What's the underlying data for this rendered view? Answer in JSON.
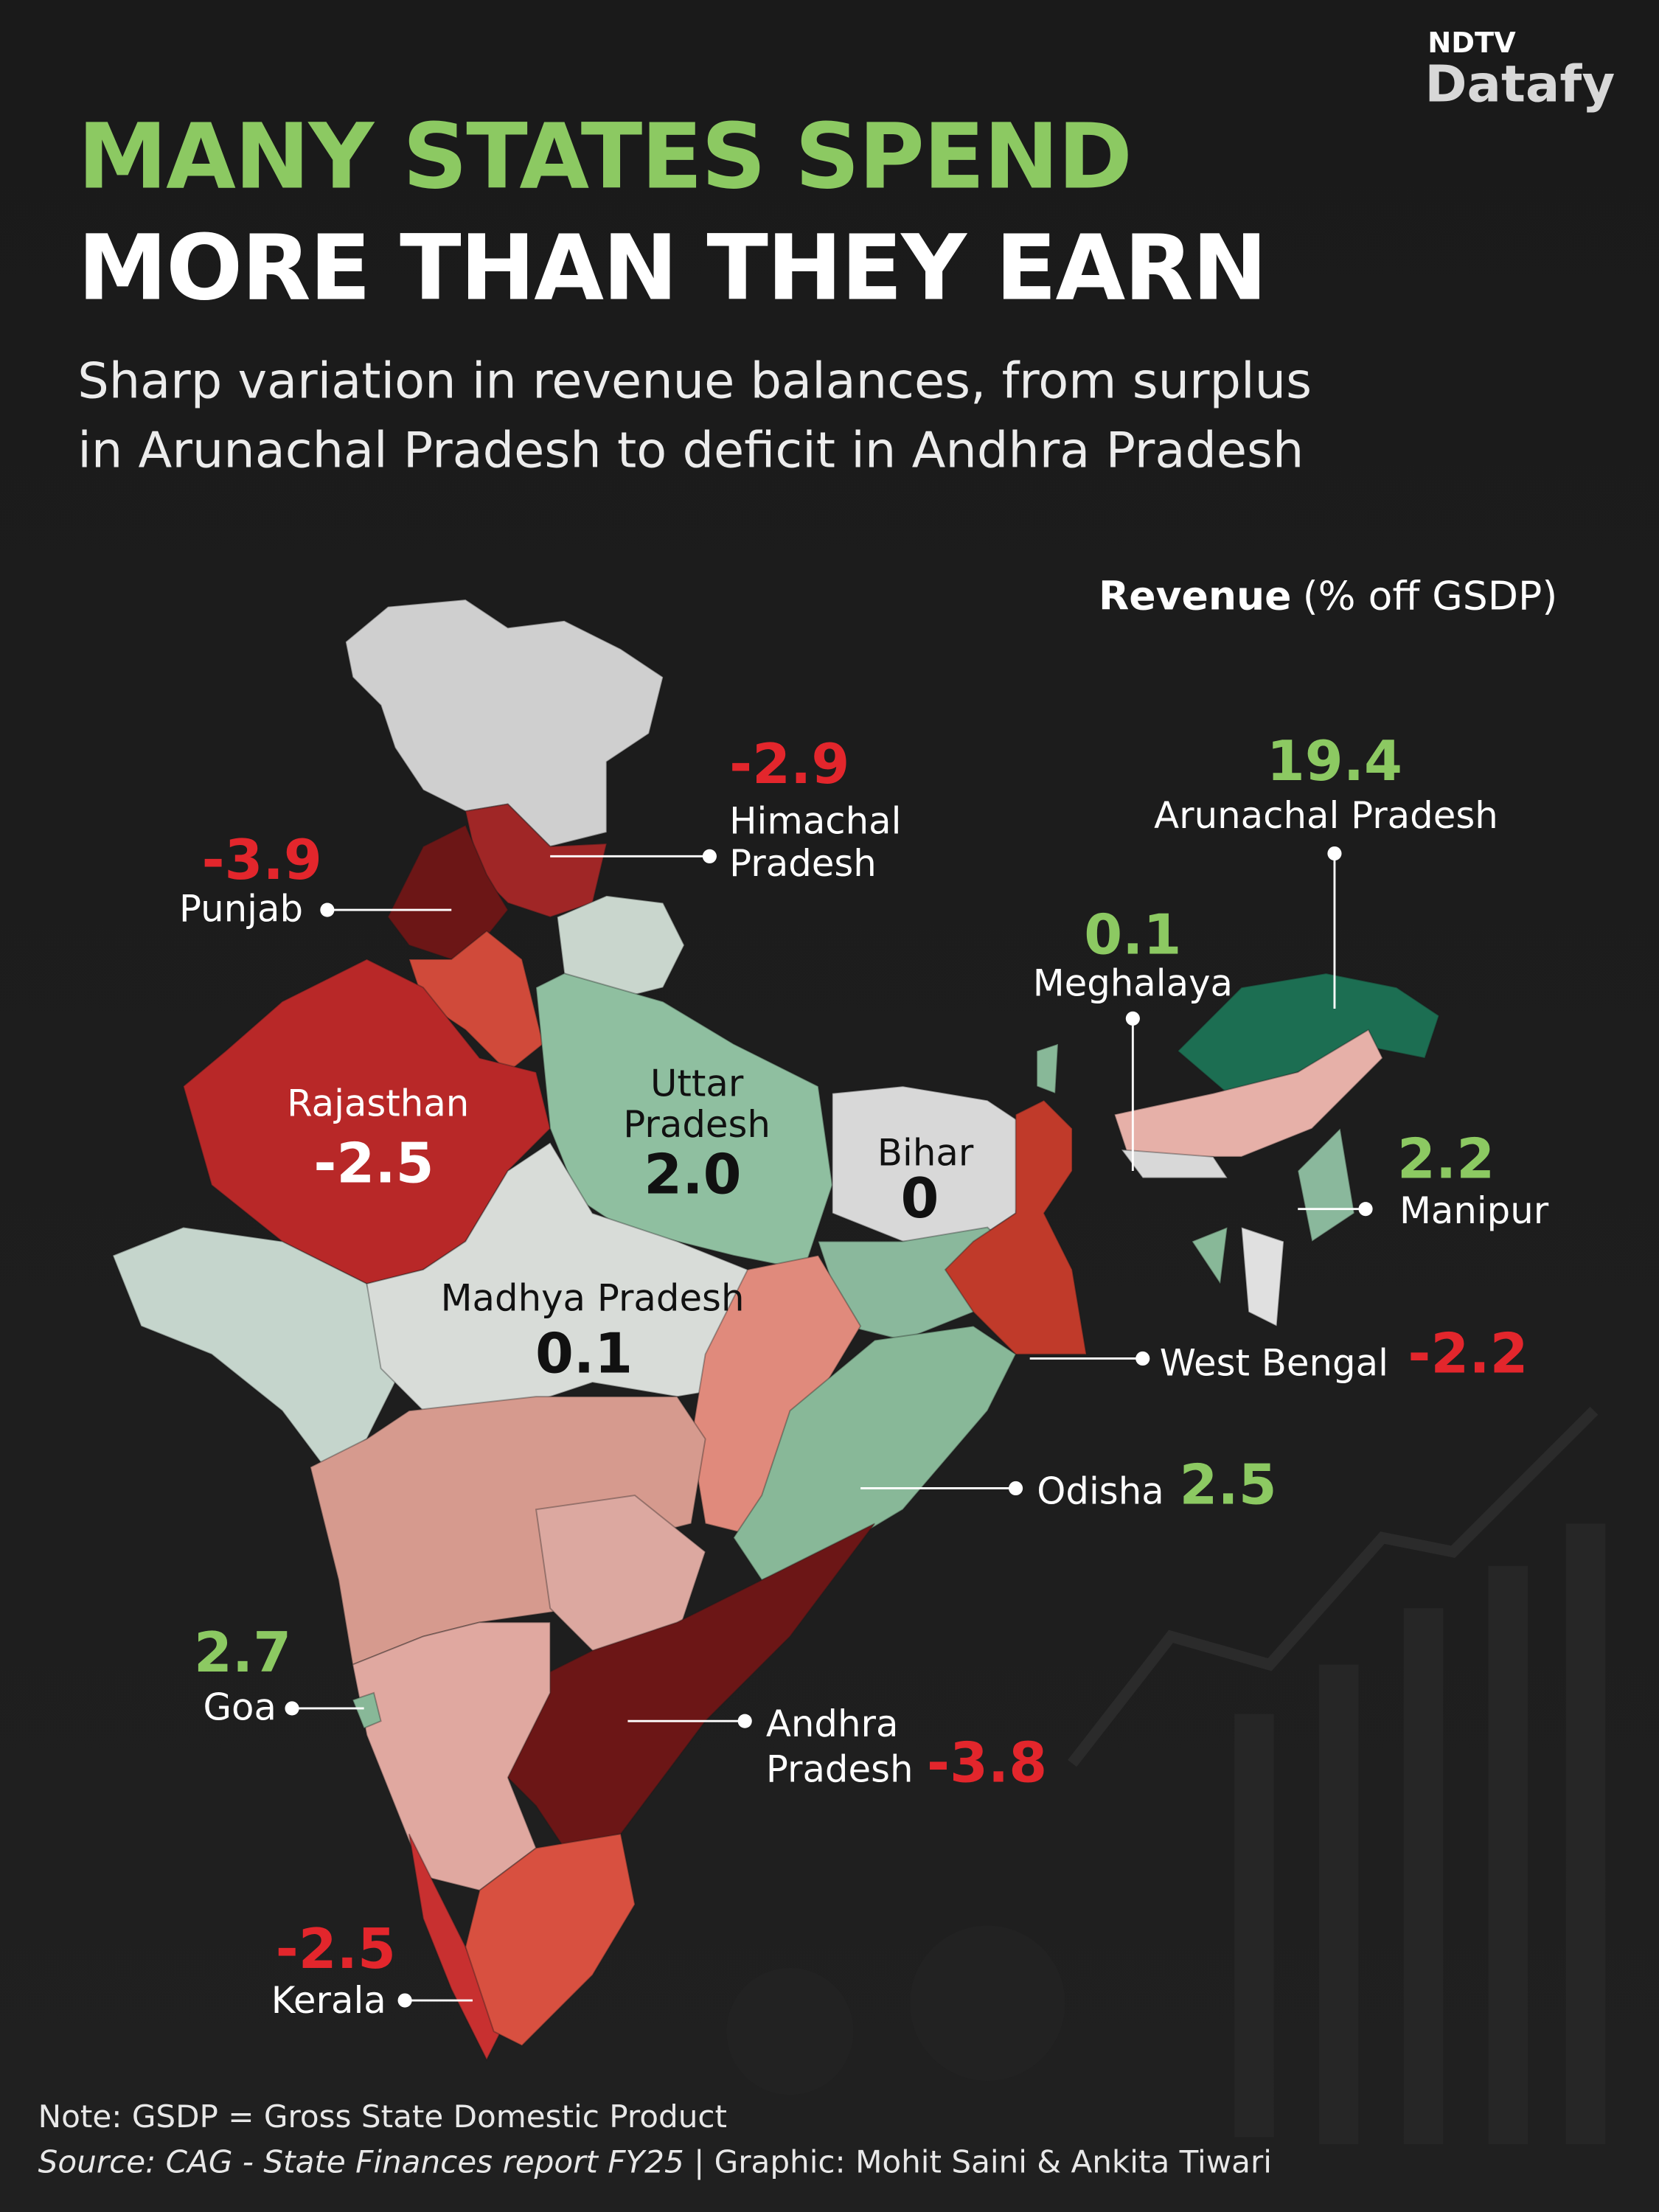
{
  "logo": {
    "brand": "NDTV",
    "product": "Datafy"
  },
  "header": {
    "title": [
      "MANY STATES SPEND",
      "MORE THAN THEY EARN"
    ],
    "subtitle": [
      "Sharp variation in revenue balances, from surplus",
      "in Arunachal Pradesh to deficit in Andhra Pradesh"
    ]
  },
  "legend": {
    "label": "Revenue",
    "unit": "(% off GSDP)"
  },
  "states": [
    {
      "name": [
        "Himachal",
        "Pradesh"
      ],
      "value": "-2.9"
    },
    {
      "name": [
        "Punjab"
      ],
      "value": "-3.9"
    },
    {
      "name": [
        "Rajasthan"
      ],
      "value": "-2.5"
    },
    {
      "name": [
        "Uttar",
        "Pradesh"
      ],
      "value": "2.0"
    },
    {
      "name": [
        "Bihar"
      ],
      "value": "0"
    },
    {
      "name": [
        "Madhya Pradesh"
      ],
      "value": "0.1"
    },
    {
      "name": [
        "Arunachal Pradesh"
      ],
      "value": "19.4"
    },
    {
      "name": [
        "Meghalaya"
      ],
      "value": "0.1"
    },
    {
      "name": [
        "Manipur"
      ],
      "value": "2.2"
    },
    {
      "name": [
        "West Bengal"
      ],
      "value": "-2.2"
    },
    {
      "name": [
        "Odisha"
      ],
      "value": "2.5"
    },
    {
      "name": [
        "Goa"
      ],
      "value": "2.7"
    },
    {
      "name": [
        "Andhra",
        "Pradesh"
      ],
      "value": "-3.8"
    },
    {
      "name": [
        "Kerala"
      ],
      "value": "-2.5"
    }
  ],
  "footer": {
    "note": "Note: GSDP = Gross State Domestic Product",
    "source": "Source: CAG - State Finances report FY25",
    "credit": " | Graphic: Mohit Saini & Ankita Tiwari"
  }
}
